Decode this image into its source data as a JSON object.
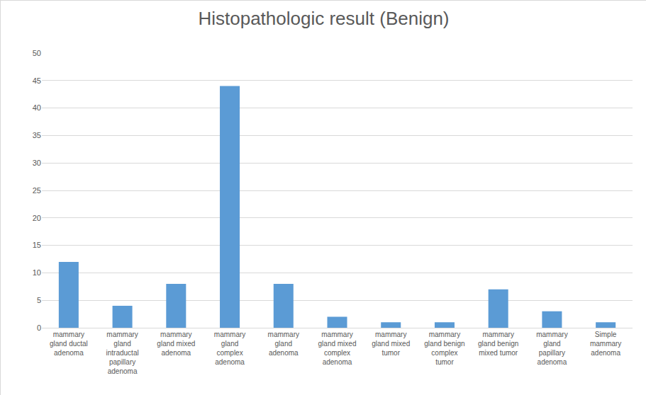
{
  "chart_data": {
    "type": "bar",
    "title": "Histopathologic result (Benign)",
    "categories": [
      "mammary gland ductal adenoma",
      "mammary gland intraductal papillary adenoma",
      "mammary gland mixed adenoma",
      "mammary gland complex adenoma",
      "mammary gland adenoma",
      "mammary gland mixed complex adenoma",
      "mammary gland mixed tumor",
      "mammary gland benign complex tumor",
      "mammary gland benign mixed tumor",
      "mammary gland papillary adenoma",
      "Simple mammary adenoma"
    ],
    "values": [
      12,
      4,
      8,
      44,
      8,
      2,
      1,
      1,
      7,
      3,
      1
    ],
    "color": "#5b9bd5",
    "ylim": [
      0,
      50
    ],
    "yticks": [
      0,
      5,
      10,
      15,
      20,
      25,
      30,
      35,
      40,
      45,
      50
    ],
    "grid": true
  }
}
